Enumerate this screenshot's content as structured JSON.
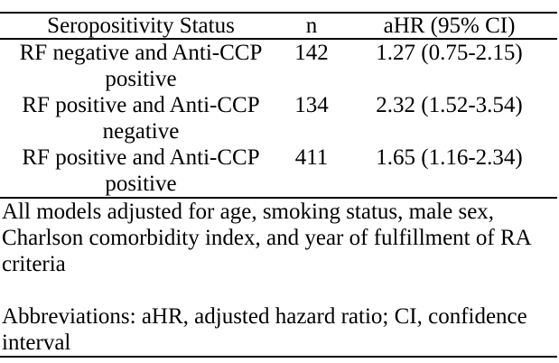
{
  "table": {
    "headers": {
      "status": "Seropositivity Status",
      "n": "n",
      "ahr": "aHR (95% CI)"
    },
    "rows": [
      {
        "status": "RF negative and Anti-CCP positive",
        "n": "142",
        "ahr": "1.27 (0.75-2.15)"
      },
      {
        "status": "RF positive and Anti-CCP negative",
        "n": "134",
        "ahr": "2.32 (1.52-3.54)"
      },
      {
        "status": "RF positive and Anti-CCP positive",
        "n": "411",
        "ahr": "1.65 (1.16-2.34)"
      }
    ]
  },
  "footnotes": {
    "adjustment": "All models adjusted for age, smoking status, male sex, Charlson comorbidity index, and year of fulfillment of RA criteria",
    "abbreviations": "Abbreviations: aHR, adjusted hazard ratio; CI, confidence interval"
  }
}
